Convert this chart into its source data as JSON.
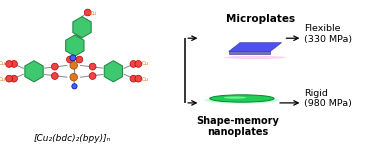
{
  "fig_width": 3.78,
  "fig_height": 1.47,
  "dpi": 100,
  "background": "#ffffff",
  "label_microplates": "Microplates",
  "label_nanoplates": "Shape-memory\nnanoplates",
  "label_flexible": "Flexible\n(330 MPa)",
  "label_rigid": "Rigid\n(980 MPa)",
  "formula": "[Cu₂(bdc)₂(bpy)]ₙ",
  "green_hex": "#3ec96e",
  "green_hex_edge": "#1e8040",
  "orange_cu": "#e07820",
  "red_o": "#ee4444",
  "blue_n": "#4466ee",
  "gray_bond": "#888888",
  "microplate_top_color": "#5050ee",
  "microplate_side_color": "#7070bb",
  "microplate_shadow_color": "#ffbbee",
  "nanoplate_color": "#22cc55",
  "nanoplate_edge": "#008833",
  "nanoplate_shadow": "#99ffbb"
}
